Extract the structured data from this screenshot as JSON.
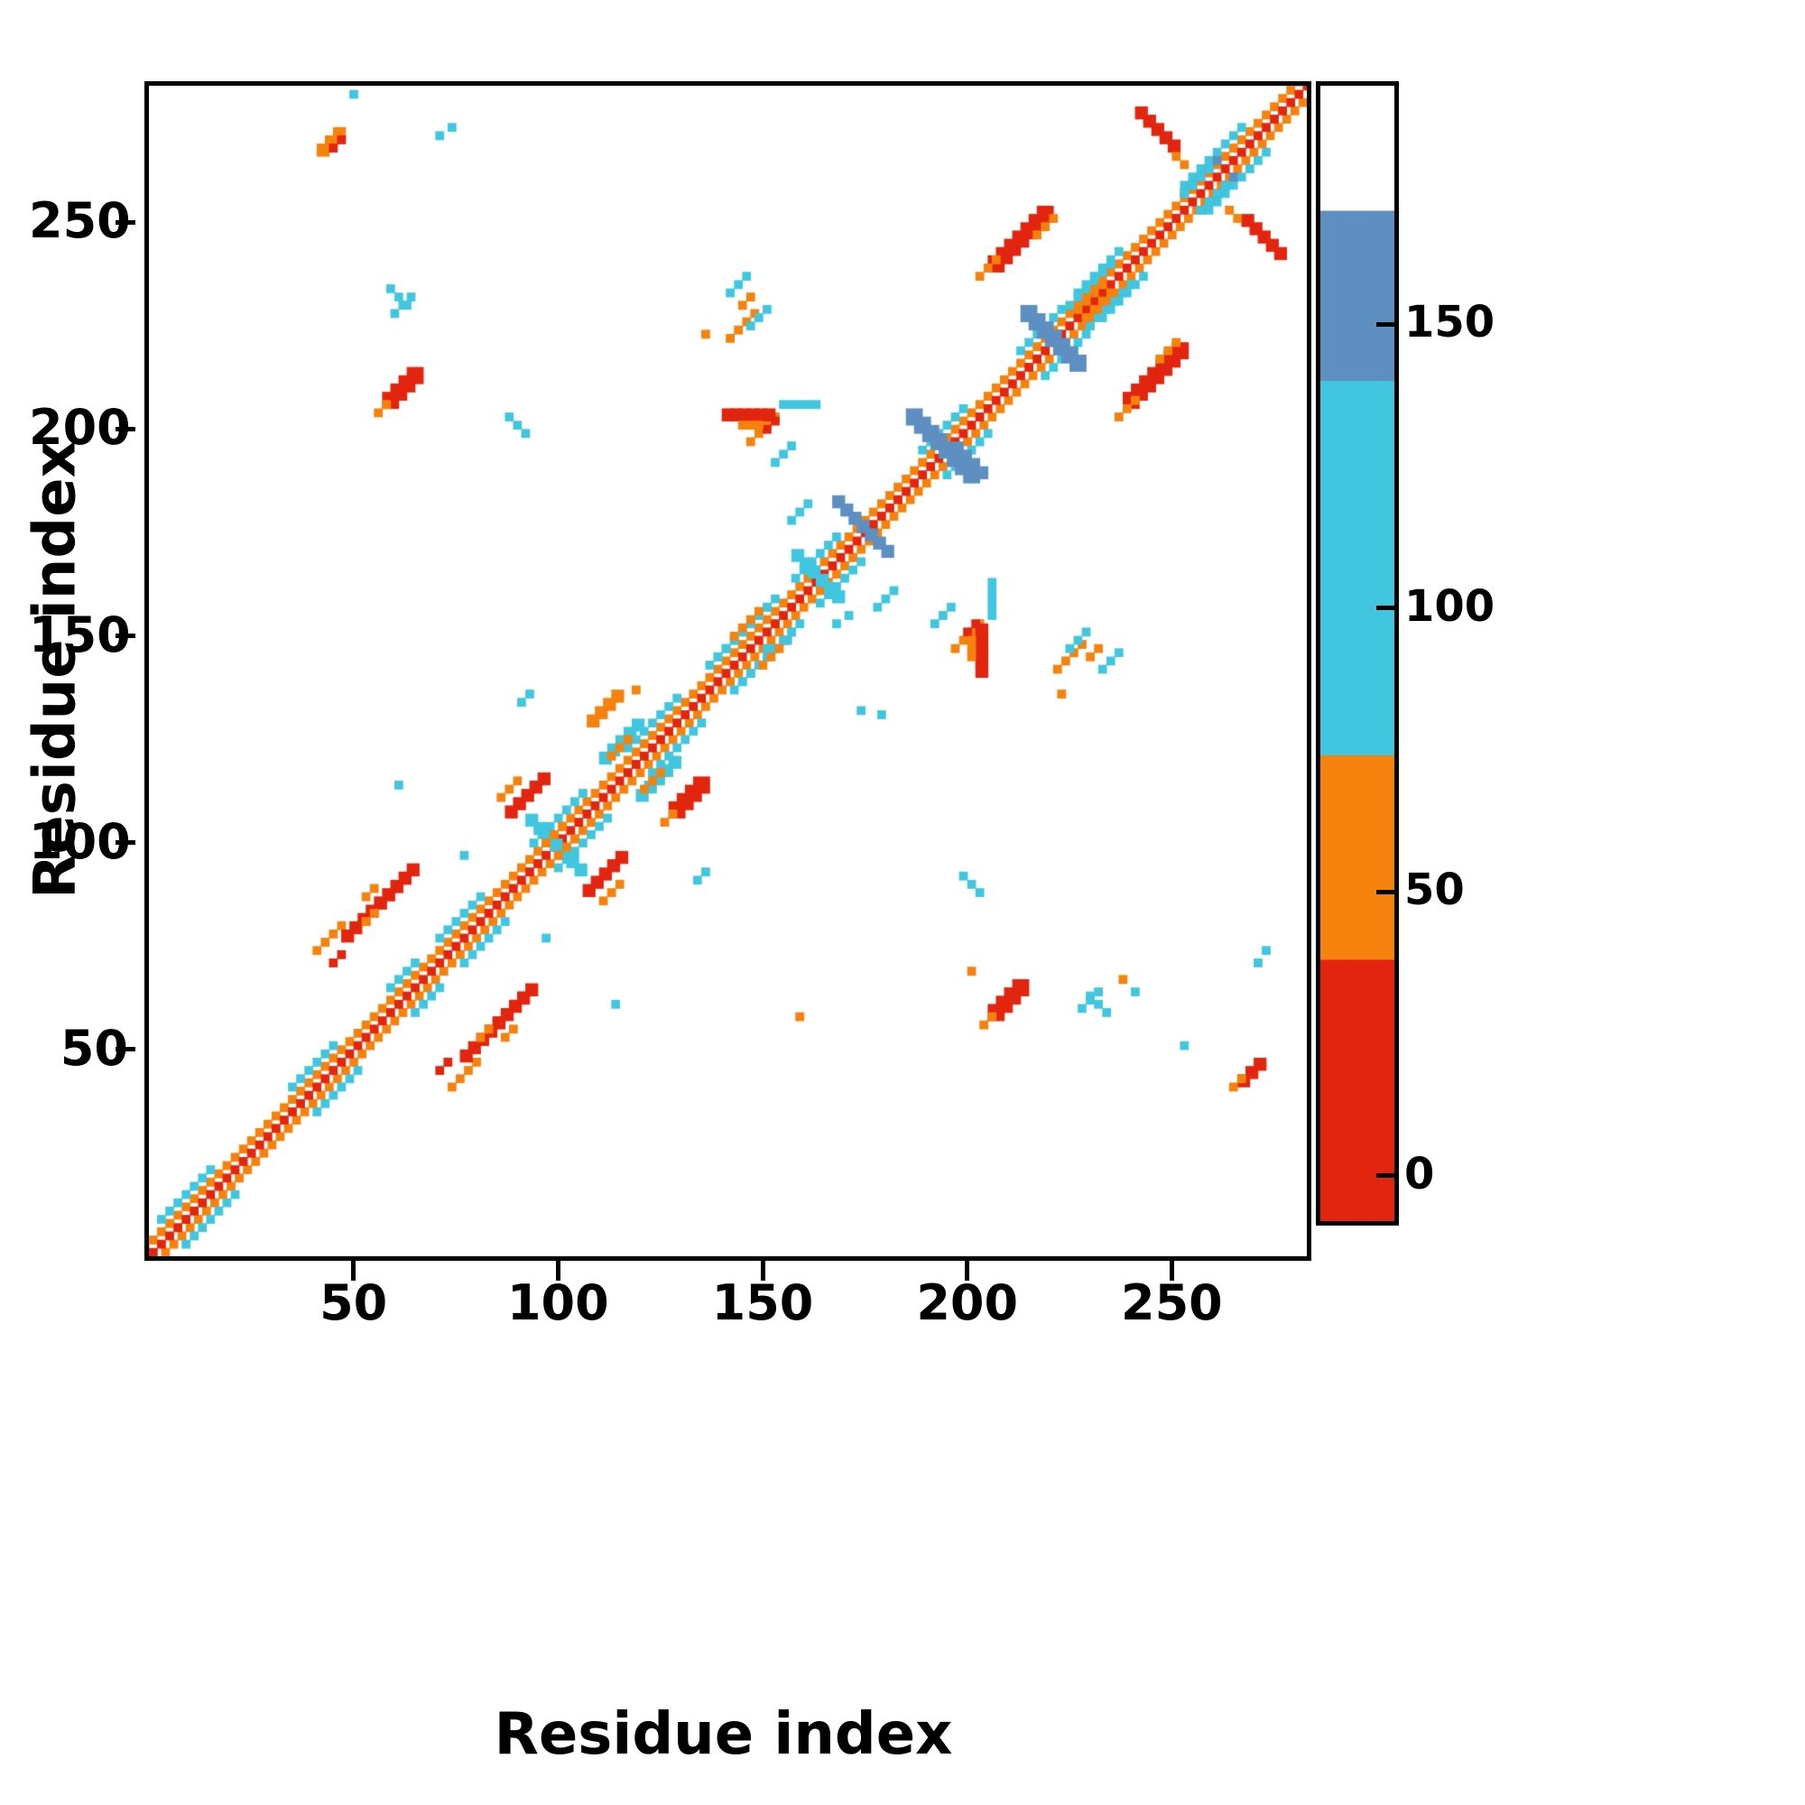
{
  "axes": {
    "x_label": "Residue index",
    "y_label": "Residue index",
    "x_ticks": [
      50,
      100,
      150,
      200,
      250
    ],
    "y_ticks": [
      50,
      100,
      150,
      200,
      250
    ],
    "range": [
      0,
      283
    ]
  },
  "colorbar": {
    "ticks": [
      0,
      50,
      100,
      150
    ],
    "value_range": [
      -8,
      192
    ],
    "bands": [
      {
        "color": "#e1250e",
        "from": -8,
        "to": 38
      },
      {
        "color": "#f5820d",
        "from": 38,
        "to": 74
      },
      {
        "color": "#41c6e0",
        "from": 74,
        "to": 140
      },
      {
        "color": "#5d8fc0",
        "from": 140,
        "to": 170
      },
      {
        "color": "#ffffff",
        "from": 170,
        "to": 192
      }
    ]
  },
  "chart_data": {
    "type": "heatmap",
    "title": "",
    "xlabel": "Residue index",
    "ylabel": "Residue index",
    "x_range": [
      1,
      283
    ],
    "y_range": [
      1,
      283
    ],
    "colorbar_ticks": [
      0,
      50,
      100,
      150
    ],
    "description": "Protein residue-residue contact map, symmetric about the main diagonal. Cell color encodes a value per the colorbar: red near 0, orange near 50, cyan near 100, steel blue near 150, white = no contact. A continuous red/orange band runs along the main diagonal with intermittent cyan flanking bands; off-diagonal clusters of contacts appear as short diagonal (parallel and anti-parallel) segments.",
    "colors": {
      "red": "#e1250e",
      "orange": "#f5820d",
      "cyan": "#41c6e0",
      "blue": "#5d8fc0"
    },
    "diagonal": {
      "core_color": "red",
      "flank_color": "orange",
      "flank_offset": 3,
      "width": 2
    },
    "diagonal_cyan_ranges": [
      [
        2,
        16
      ],
      [
        34,
        46
      ],
      [
        58,
        66
      ],
      [
        70,
        82
      ],
      [
        93,
        106
      ],
      [
        116,
        130
      ],
      [
        136,
        154
      ],
      [
        157,
        168
      ],
      [
        188,
        200
      ],
      [
        212,
        224
      ],
      [
        226,
        238
      ],
      [
        252,
        268
      ]
    ],
    "segments": [
      {
        "x": 40,
        "y": 73,
        "len": 8,
        "dir": 1,
        "w": 2,
        "c": "orange",
        "m": true
      },
      {
        "x": 44,
        "y": 70,
        "len": 3,
        "dir": 1,
        "w": 2,
        "c": "red",
        "m": true
      },
      {
        "x": 55,
        "y": 84,
        "len": 10,
        "dir": 1,
        "w": 3,
        "c": "red",
        "m": true
      },
      {
        "x": 52,
        "y": 86,
        "len": 4,
        "dir": 1,
        "w": 2,
        "c": "orange",
        "m": true
      },
      {
        "x": 76,
        "y": 47,
        "len": 7,
        "dir": 1,
        "w": 3,
        "c": "red",
        "m": true
      },
      {
        "x": 80,
        "y": 52,
        "len": 6,
        "dir": 1,
        "w": 2,
        "c": "orange",
        "m": true
      },
      {
        "x": 84,
        "y": 56,
        "len": 8,
        "dir": 1,
        "w": 2,
        "c": "red",
        "m": true
      },
      {
        "x": 87,
        "y": 106,
        "len": 10,
        "dir": 1,
        "w": 3,
        "c": "red",
        "m": true
      },
      {
        "x": 85,
        "y": 110,
        "len": 5,
        "dir": 1,
        "w": 2,
        "c": "orange",
        "m": true
      },
      {
        "x": 92,
        "y": 104,
        "len": 13,
        "dir": -1,
        "w": 3,
        "c": "cyan",
        "m": false
      },
      {
        "x": 96,
        "y": 99,
        "len": 6,
        "dir": 1,
        "w": 2,
        "c": "orange",
        "m": true
      },
      {
        "x": 110,
        "y": 119,
        "len": 10,
        "dir": 1,
        "w": 3,
        "c": "cyan",
        "m": true
      },
      {
        "x": 112,
        "y": 120,
        "len": 6,
        "dir": 1,
        "w": 2,
        "c": "orange",
        "m": true
      },
      {
        "x": 107,
        "y": 128,
        "len": 7,
        "dir": 1,
        "w": 3,
        "c": "orange",
        "m": false
      },
      {
        "x": 127,
        "y": 106,
        "len": 8,
        "dir": 1,
        "w": 4,
        "c": "red",
        "m": false
      },
      {
        "x": 125,
        "y": 104,
        "len": 4,
        "dir": 1,
        "w": 2,
        "c": "orange",
        "m": false
      },
      {
        "x": 138,
        "y": 144,
        "len": 13,
        "dir": 1,
        "w": 2,
        "c": "cyan",
        "m": true
      },
      {
        "x": 142,
        "y": 149,
        "len": 7,
        "dir": 1,
        "w": 2,
        "c": "orange",
        "m": true
      },
      {
        "x": 157,
        "y": 168,
        "len": 12,
        "dir": -1,
        "w": 3,
        "c": "cyan",
        "m": false
      },
      {
        "x": 167,
        "y": 181,
        "len": 14,
        "dir": -1,
        "w": 3,
        "c": "blue",
        "m": false
      },
      {
        "x": 185,
        "y": 201,
        "len": 16,
        "dir": -1,
        "w": 4,
        "c": "blue",
        "m": false
      },
      {
        "x": 196,
        "y": 194,
        "len": 8,
        "dir": -1,
        "w": 3,
        "c": "blue",
        "m": false
      },
      {
        "x": 146,
        "y": 196,
        "len": 7,
        "dir": 1,
        "w": 2,
        "c": "orange",
        "m": true
      },
      {
        "x": 150,
        "y": 199,
        "len": 3,
        "dir": 1,
        "w": 2,
        "c": "red",
        "m": true
      },
      {
        "x": 152,
        "y": 191,
        "len": 5,
        "dir": 1,
        "w": 2,
        "c": "cyan",
        "m": true
      },
      {
        "x": 202,
        "y": 140,
        "len": 12,
        "dir": 2,
        "w": 3,
        "c": "red",
        "m": true
      },
      {
        "x": 200,
        "y": 144,
        "len": 6,
        "dir": 2,
        "w": 2,
        "c": "orange",
        "m": true
      },
      {
        "x": 205,
        "y": 154,
        "len": 10,
        "dir": 2,
        "w": 2,
        "c": "cyan",
        "m": true
      },
      {
        "x": 213,
        "y": 226,
        "len": 14,
        "dir": -1,
        "w": 4,
        "c": "blue",
        "m": false
      },
      {
        "x": 205,
        "y": 238,
        "len": 13,
        "dir": 1,
        "w": 4,
        "c": "red",
        "m": true
      },
      {
        "x": 202,
        "y": 236,
        "len": 6,
        "dir": 1,
        "w": 2,
        "c": "orange",
        "m": true
      },
      {
        "x": 216,
        "y": 246,
        "len": 5,
        "dir": 1,
        "w": 2,
        "c": "orange",
        "m": true
      },
      {
        "x": 224,
        "y": 229,
        "len": 11,
        "dir": 1,
        "w": 2,
        "c": "cyan",
        "m": true
      },
      {
        "x": 228,
        "y": 226,
        "len": 8,
        "dir": 1,
        "w": 2,
        "c": "orange",
        "m": true
      },
      {
        "x": 252,
        "y": 256,
        "len": 10,
        "dir": 1,
        "w": 2,
        "c": "blue",
        "m": true
      },
      {
        "x": 256,
        "y": 252,
        "len": 8,
        "dir": 1,
        "w": 2,
        "c": "cyan",
        "m": true
      },
      {
        "x": 267,
        "y": 249,
        "len": 9,
        "dir": -1,
        "w": 3,
        "c": "red",
        "m": true
      },
      {
        "x": 263,
        "y": 252,
        "len": 4,
        "dir": -1,
        "w": 2,
        "c": "orange",
        "m": true
      },
      {
        "x": 41,
        "y": 266,
        "len": 5,
        "dir": 1,
        "w": 3,
        "c": "orange",
        "m": false
      },
      {
        "x": 44,
        "y": 267,
        "len": 3,
        "dir": 1,
        "w": 2,
        "c": "red",
        "m": false
      },
      {
        "x": 266,
        "y": 41,
        "len": 6,
        "dir": 1,
        "w": 3,
        "c": "red",
        "m": false
      },
      {
        "x": 264,
        "y": 40,
        "len": 3,
        "dir": 1,
        "w": 2,
        "c": "orange",
        "m": false
      },
      {
        "x": 57,
        "y": 205,
        "len": 7,
        "dir": 1,
        "w": 4,
        "c": "red",
        "m": true
      },
      {
        "x": 55,
        "y": 203,
        "len": 4,
        "dir": 1,
        "w": 2,
        "c": "orange",
        "m": true
      },
      {
        "x": 59,
        "y": 227,
        "len": 6,
        "dir": 1,
        "w": 2,
        "c": "cyan",
        "m": true
      },
      {
        "x": 87,
        "y": 202,
        "len": 5,
        "dir": -1,
        "w": 2,
        "c": "cyan",
        "m": true
      },
      {
        "x": 90,
        "y": 133,
        "len": 4,
        "dir": 1,
        "w": 2,
        "c": "cyan",
        "m": true
      },
      {
        "x": 177,
        "y": 156,
        "len": 5,
        "dir": 1,
        "w": 2,
        "c": "cyan",
        "m": true
      },
      {
        "x": 221,
        "y": 141,
        "len": 7,
        "dir": 1,
        "w": 2,
        "c": "orange",
        "m": true
      },
      {
        "x": 224,
        "y": 146,
        "len": 6,
        "dir": 1,
        "w": 2,
        "c": "cyan",
        "m": true
      },
      {
        "x": 229,
        "y": 62,
        "len": 6,
        "dir": -1,
        "w": 2,
        "c": "cyan",
        "m": true
      },
      {
        "x": 141,
        "y": 232,
        "len": 5,
        "dir": 1,
        "w": 2,
        "c": "cyan",
        "m": true
      },
      {
        "x": 144,
        "y": 229,
        "len": 4,
        "dir": 1,
        "w": 2,
        "c": "orange",
        "m": true
      }
    ],
    "dots": [
      {
        "x": 73,
        "y": 272,
        "c": "cyan",
        "m": true
      },
      {
        "x": 60,
        "y": 113,
        "c": "cyan",
        "m": true
      },
      {
        "x": 252,
        "y": 50,
        "c": "cyan",
        "m": false
      },
      {
        "x": 270,
        "y": 70,
        "c": "cyan",
        "m": true
      },
      {
        "x": 200,
        "y": 68,
        "c": "orange",
        "m": false
      },
      {
        "x": 158,
        "y": 57,
        "c": "orange",
        "m": false
      },
      {
        "x": 237,
        "y": 66,
        "c": "orange",
        "m": false
      },
      {
        "x": 240,
        "y": 63,
        "c": "cyan",
        "m": false
      },
      {
        "x": 222,
        "y": 135,
        "c": "orange",
        "m": true
      },
      {
        "x": 178,
        "y": 130,
        "c": "cyan",
        "m": false
      },
      {
        "x": 150,
        "y": 146,
        "c": "cyan",
        "m": false
      },
      {
        "x": 155,
        "y": 148,
        "c": "cyan",
        "m": false
      },
      {
        "x": 167,
        "y": 152,
        "c": "cyan",
        "m": false
      },
      {
        "x": 170,
        "y": 154,
        "c": "cyan",
        "m": false
      },
      {
        "x": 49,
        "y": 280,
        "c": "cyan",
        "m": false
      },
      {
        "x": 118,
        "y": 136,
        "c": "orange",
        "m": false
      },
      {
        "x": 173,
        "y": 131,
        "c": "cyan",
        "m": false
      },
      {
        "x": 96,
        "y": 76,
        "c": "cyan",
        "m": true
      }
    ]
  }
}
